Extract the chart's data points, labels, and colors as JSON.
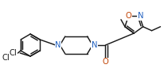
{
  "bg_color": "#ffffff",
  "bond_color": "#1a1a1a",
  "N_color": "#2060c0",
  "O_color": "#c04000",
  "label_color": "#1a1a1a",
  "linewidth": 1.05,
  "fontsize": 7.2,
  "figwidth": 2.11,
  "figheight": 0.96,
  "dpi": 100,
  "xlim": [
    0,
    211
  ],
  "ylim": [
    0,
    96
  ]
}
